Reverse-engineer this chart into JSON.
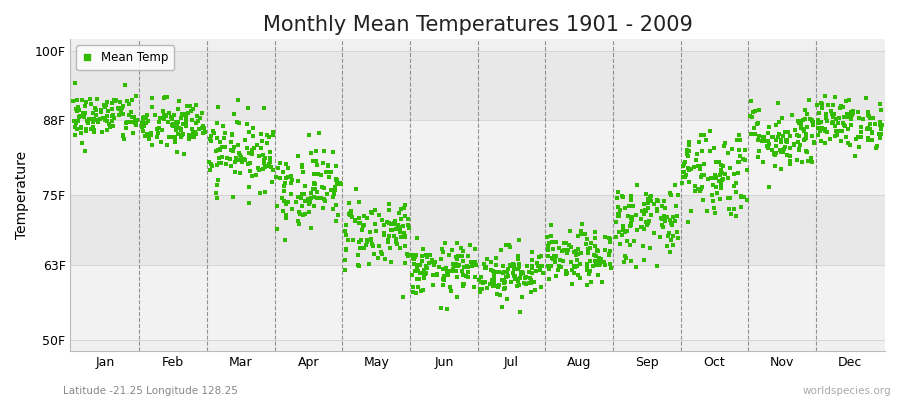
{
  "title": "Monthly Mean Temperatures 1901 - 2009",
  "ylabel": "Temperature",
  "yticks": [
    50,
    63,
    75,
    88,
    100
  ],
  "ytick_labels": [
    "50F",
    "63F",
    "75F",
    "88F",
    "100F"
  ],
  "ylim": [
    48,
    102
  ],
  "months": [
    "Jan",
    "Feb",
    "Mar",
    "Apr",
    "May",
    "Jun",
    "Jul",
    "Aug",
    "Sep",
    "Oct",
    "Nov",
    "Dec"
  ],
  "monthly_means": [
    88.5,
    87.0,
    82.5,
    76.5,
    68.5,
    62.0,
    61.5,
    64.0,
    70.5,
    79.0,
    85.0,
    87.5
  ],
  "monthly_stds": [
    2.2,
    2.3,
    3.2,
    3.5,
    3.2,
    2.3,
    2.3,
    2.3,
    3.5,
    4.0,
    3.0,
    2.2
  ],
  "n_years": 109,
  "dot_color": "#33bb00",
  "outer_bg": "#ffffff",
  "plot_bg_light": "#f0f0f0",
  "plot_bg_dark": "#e0e0e0",
  "legend_label": "Mean Temp",
  "subtitle": "Latitude -21.25 Longitude 128.25",
  "watermark": "worldspecies.org",
  "title_fontsize": 15,
  "label_fontsize": 10,
  "tick_fontsize": 9,
  "band_colors": [
    "#f2f2f2",
    "#e8e8e8"
  ]
}
